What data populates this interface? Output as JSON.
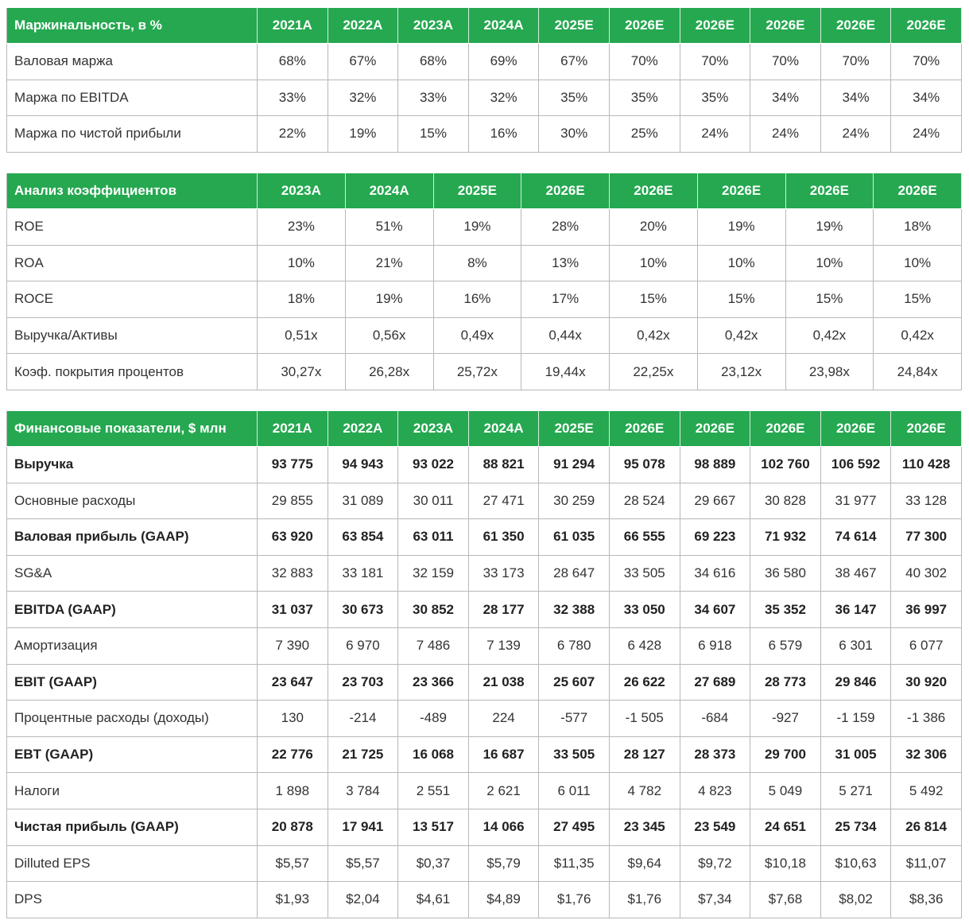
{
  "margins": {
    "title": "Маржинальность, в %",
    "columns": [
      "2021A",
      "2022A",
      "2023A",
      "2024A",
      "2025E",
      "2026E",
      "2026E",
      "2026E",
      "2026E",
      "2026E"
    ],
    "rows": [
      {
        "label": "Валовая маржа",
        "values": [
          "68%",
          "67%",
          "68%",
          "69%",
          "67%",
          "70%",
          "70%",
          "70%",
          "70%",
          "70%"
        ]
      },
      {
        "label": "Маржа по EBITDA",
        "values": [
          "33%",
          "32%",
          "33%",
          "32%",
          "35%",
          "35%",
          "35%",
          "34%",
          "34%",
          "34%"
        ]
      },
      {
        "label": "Маржа по чистой прибыли",
        "values": [
          "22%",
          "19%",
          "15%",
          "16%",
          "30%",
          "25%",
          "24%",
          "24%",
          "24%",
          "24%"
        ]
      }
    ]
  },
  "ratios": {
    "title": "Анализ коэффициентов",
    "columns": [
      "2023A",
      "2024A",
      "2025E",
      "2026E",
      "2026E",
      "2026E",
      "2026E",
      "2026E"
    ],
    "rows": [
      {
        "label": "ROE",
        "values": [
          "23%",
          "51%",
          "19%",
          "28%",
          "20%",
          "19%",
          "19%",
          "18%"
        ]
      },
      {
        "label": "ROA",
        "values": [
          "10%",
          "21%",
          "8%",
          "13%",
          "10%",
          "10%",
          "10%",
          "10%"
        ]
      },
      {
        "label": "ROCE",
        "values": [
          "18%",
          "19%",
          "16%",
          "17%",
          "15%",
          "15%",
          "15%",
          "15%"
        ]
      },
      {
        "label": "Выручка/Активы",
        "values": [
          "0,51x",
          "0,56x",
          "0,49x",
          "0,44x",
          "0,42x",
          "0,42x",
          "0,42x",
          "0,42x"
        ]
      },
      {
        "label": "Коэф. покрытия процентов",
        "values": [
          "30,27x",
          "26,28x",
          "25,72x",
          "19,44x",
          "22,25x",
          "23,12x",
          "23,98x",
          "24,84x"
        ]
      }
    ]
  },
  "financials": {
    "title": "Финансовые показатели, $ млн",
    "columns": [
      "2021A",
      "2022A",
      "2023A",
      "2024A",
      "2025E",
      "2026E",
      "2026E",
      "2026E",
      "2026E",
      "2026E"
    ],
    "rows": [
      {
        "label": "Выручка",
        "bold": true,
        "values": [
          "93 775",
          "94 943",
          "93 022",
          "88 821",
          "91 294",
          "95 078",
          "98 889",
          "102 760",
          "106 592",
          "110 428"
        ]
      },
      {
        "label": "Основные расходы",
        "bold": false,
        "values": [
          "29 855",
          "31 089",
          "30 011",
          "27 471",
          "30 259",
          "28 524",
          "29 667",
          "30 828",
          "31 977",
          "33 128"
        ]
      },
      {
        "label": "Валовая прибыль (GAAP)",
        "bold": true,
        "values": [
          "63 920",
          "63 854",
          "63 011",
          "61 350",
          "61 035",
          "66 555",
          "69 223",
          "71 932",
          "74 614",
          "77 300"
        ]
      },
      {
        "label": "SG&A",
        "bold": false,
        "values": [
          "32 883",
          "33 181",
          "32 159",
          "33 173",
          "28 647",
          "33 505",
          "34 616",
          "36 580",
          "38 467",
          "40 302"
        ]
      },
      {
        "label": "EBITDA (GAAP)",
        "bold": true,
        "values": [
          "31 037",
          "30 673",
          "30 852",
          "28 177",
          "32 388",
          "33 050",
          "34 607",
          "35 352",
          "36 147",
          "36 997"
        ]
      },
      {
        "label": "Амортизация",
        "bold": false,
        "values": [
          "7 390",
          "6 970",
          "7 486",
          "7 139",
          "6 780",
          "6 428",
          "6 918",
          "6 579",
          "6 301",
          "6 077"
        ]
      },
      {
        "label": "EBIT (GAAP)",
        "bold": true,
        "values": [
          "23 647",
          "23 703",
          "23 366",
          "21 038",
          "25 607",
          "26 622",
          "27 689",
          "28 773",
          "29 846",
          "30 920"
        ]
      },
      {
        "label": "Процентные расходы (доходы)",
        "bold": false,
        "values": [
          "130",
          "-214",
          "-489",
          "224",
          "-577",
          "-1 505",
          "-684",
          "-927",
          "-1 159",
          "-1 386"
        ]
      },
      {
        "label": "EBT (GAAP)",
        "bold": true,
        "values": [
          "22 776",
          "21 725",
          "16 068",
          "16 687",
          "33 505",
          "28 127",
          "28 373",
          "29 700",
          "31 005",
          "32 306"
        ]
      },
      {
        "label": "Налоги",
        "bold": false,
        "values": [
          "1 898",
          "3 784",
          "2 551",
          "2 621",
          "6 011",
          "4 782",
          "4 823",
          "5 049",
          "5 271",
          "5 492"
        ]
      },
      {
        "label": "Чистая прибыль (GAAP)",
        "bold": true,
        "values": [
          "20 878",
          "17 941",
          "13 517",
          "14 066",
          "27 495",
          "23 345",
          "23 549",
          "24 651",
          "25 734",
          "26 814"
        ]
      },
      {
        "label": "Dilluted EPS",
        "bold": false,
        "values": [
          "$5,57",
          "$5,57",
          "$0,37",
          "$5,79",
          "$11,35",
          "$9,64",
          "$9,72",
          "$10,18",
          "$10,63",
          "$11,07"
        ]
      },
      {
        "label": "DPS",
        "bold": false,
        "values": [
          "$1,93",
          "$2,04",
          "$4,61",
          "$4,89",
          "$1,76",
          "$1,76",
          "$7,34",
          "$7,68",
          "$8,02",
          "$8,36"
        ]
      }
    ]
  }
}
